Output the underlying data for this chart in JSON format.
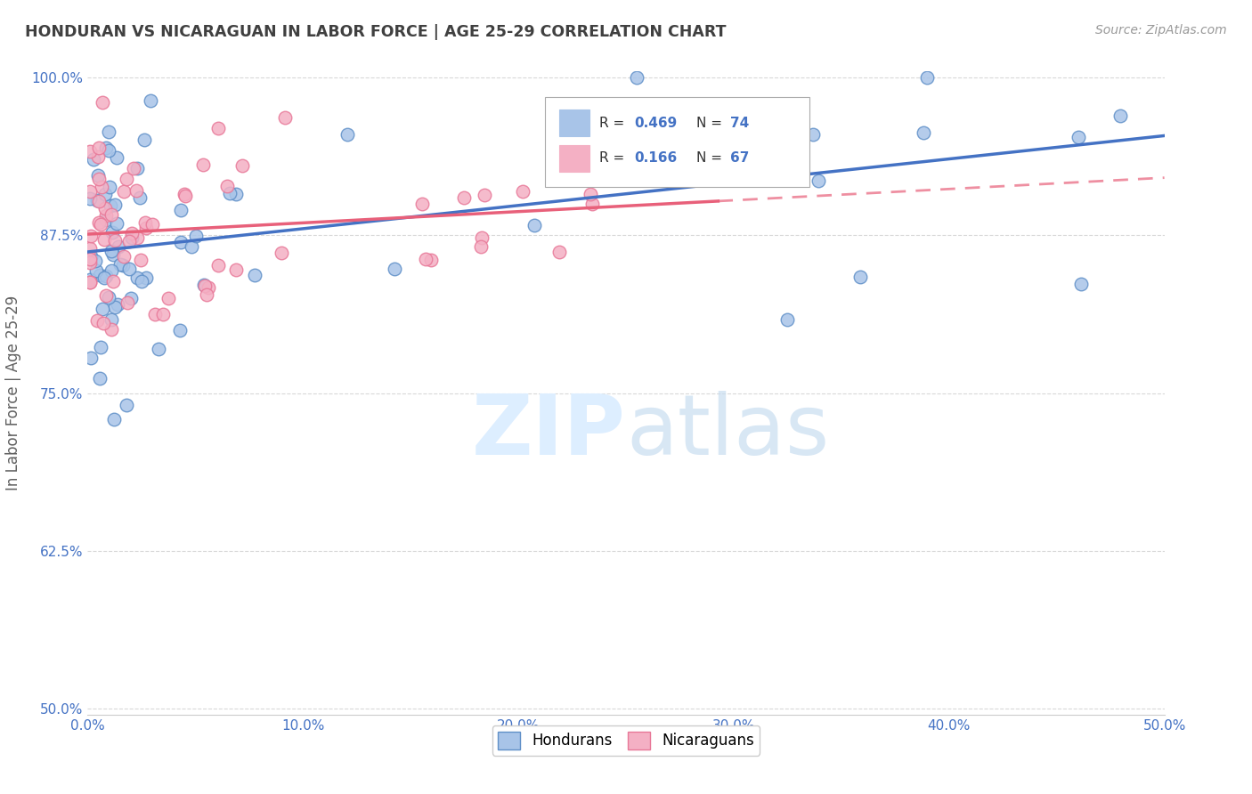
{
  "title": "HONDURAN VS NICARAGUAN IN LABOR FORCE | AGE 25-29 CORRELATION CHART",
  "source_text": "Source: ZipAtlas.com",
  "ylabel": "In Labor Force | Age 25-29",
  "xlim": [
    0.0,
    0.5
  ],
  "ylim": [
    0.495,
    1.005
  ],
  "xticks": [
    0.0,
    0.1,
    0.2,
    0.3,
    0.4,
    0.5
  ],
  "xtick_labels": [
    "0.0%",
    "10.0%",
    "20.0%",
    "30.0%",
    "40.0%",
    "50.0%"
  ],
  "yticks": [
    0.5,
    0.625,
    0.75,
    0.875,
    1.0
  ],
  "ytick_labels": [
    "50.0%",
    "62.5%",
    "75.0%",
    "87.5%",
    "100.0%"
  ],
  "R_honduran": 0.469,
  "N_honduran": 74,
  "R_nicaraguan": 0.166,
  "N_nicaraguan": 67,
  "blue_color": "#4472c4",
  "pink_color": "#e8607a",
  "dot_blue": "#a8c4e8",
  "dot_pink": "#f4b0c4",
  "dot_edge_blue": "#6090c8",
  "dot_edge_pink": "#e87898",
  "background_color": "#ffffff",
  "grid_color": "#d8d8d8",
  "title_color": "#404040",
  "ylabel_color": "#606060",
  "tick_label_color": "#4472c4",
  "watermark_color": "#ddeeff",
  "watermark_text": "ZIPatlas",
  "source_color": "#999999"
}
